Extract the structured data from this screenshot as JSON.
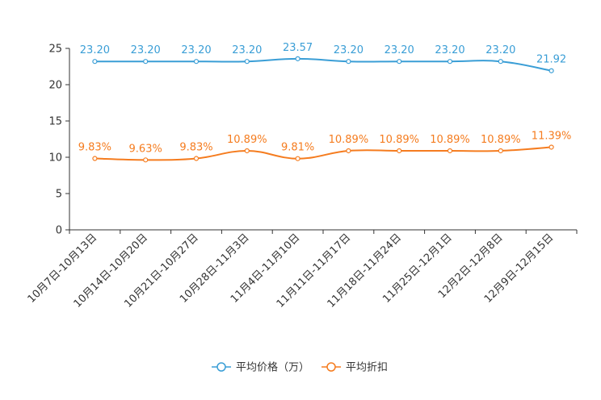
{
  "chart_data": {
    "type": "line",
    "title": "",
    "xlabel": "",
    "ylabel": "",
    "ylim": [
      0,
      25
    ],
    "yticks": [
      0,
      5,
      10,
      15,
      20,
      25
    ],
    "ytick_labels": [
      "0",
      "5",
      "10",
      "15",
      "20",
      "25"
    ],
    "categories": [
      "10月7日-10月13日",
      "10月14日-10月20日",
      "10月21日-10月27日",
      "10月28日-11月3日",
      "11月4日-11月10日",
      "11月11日-11月17日",
      "11月18日-11月24日",
      "11月25日-12月1日",
      "12月2日-12月8日",
      "12月9日-12月15日"
    ],
    "series": [
      {
        "name": "平均价格（万）",
        "color": "#3a9ed6",
        "values": [
          23.2,
          23.2,
          23.2,
          23.2,
          23.57,
          23.2,
          23.2,
          23.2,
          23.2,
          21.92
        ],
        "labels": [
          "23.20",
          "23.20",
          "23.20",
          "23.20",
          "23.57",
          "23.20",
          "23.20",
          "23.20",
          "23.20",
          "21.92"
        ]
      },
      {
        "name": "平均折扣",
        "color": "#f57c1f",
        "values": [
          9.83,
          9.63,
          9.83,
          10.89,
          9.81,
          10.89,
          10.89,
          10.89,
          10.89,
          11.39
        ],
        "labels": [
          "9.83%",
          "9.63%",
          "9.83%",
          "10.89%",
          "9.81%",
          "10.89%",
          "10.89%",
          "10.89%",
          "10.89%",
          "11.39%"
        ]
      }
    ],
    "grid": false,
    "legend": "bottom-center"
  }
}
